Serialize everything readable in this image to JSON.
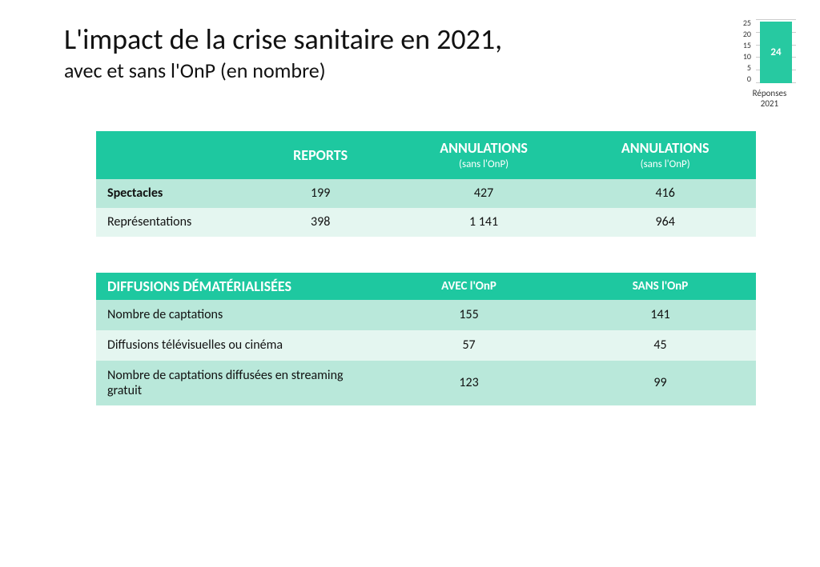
{
  "title": {
    "main": "L'impact de la crise sanitaire en 2021,",
    "sub": "avec et sans l'OnP (en nombre)"
  },
  "miniChart": {
    "type": "bar",
    "ylim_max": 25,
    "yticks": [
      "25",
      "20",
      "15",
      "10",
      "5",
      "0"
    ],
    "value": 24,
    "valueLabel": "24",
    "barColor": "#27c9a1",
    "gridColor": "#cccccc",
    "captionLine1": "Réponses",
    "captionLine2": "2021"
  },
  "table1": {
    "header": {
      "c0": "",
      "c1": "REPORTS",
      "c2_main": "ANNULATIONS",
      "c2_sub": "(sans l'OnP)",
      "c3_main": "ANNULATIONS",
      "c3_sub": "(sans l'OnP)"
    },
    "rows": [
      {
        "c0": "Spectacles",
        "c1": "199",
        "c2": "427",
        "c3": "416",
        "bold": true,
        "shade": "dark"
      },
      {
        "c0": "Représentations",
        "c1": "398",
        "c2": "1 141",
        "c3": "964",
        "bold": false,
        "shade": "light"
      }
    ],
    "colors": {
      "header_bg": "#1ec8a0",
      "dark_bg": "#b9e8da",
      "light_bg": "#e4f6f0"
    }
  },
  "table2": {
    "header": {
      "c0": "DIFFUSIONS DÉMATÉRIALISÉES",
      "c1": "AVEC l'OnP",
      "c2": "SANS l'OnP"
    },
    "rows": [
      {
        "c0": "Nombre de captations",
        "c1": "155",
        "c2": "141",
        "shade": "dark",
        "tall": false
      },
      {
        "c0": "Diffusions télévisuelles ou cinéma",
        "c1": "57",
        "c2": "45",
        "shade": "light",
        "tall": false
      },
      {
        "c0": "Nombre de captations diffusées en streaming gratuit",
        "c1": "123",
        "c2": "99",
        "shade": "dark",
        "tall": true
      }
    ],
    "colors": {
      "header_bg": "#1ec8a0",
      "dark_bg": "#b9e8da",
      "light_bg": "#e4f6f0"
    }
  }
}
